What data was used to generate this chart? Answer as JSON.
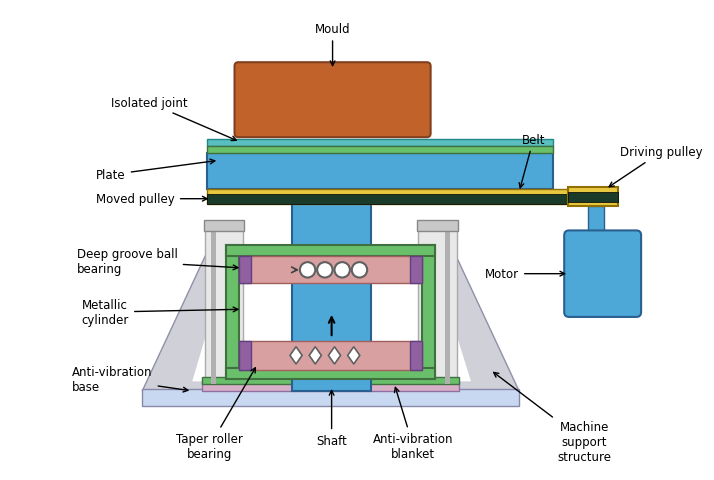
{
  "bg_color": "#ffffff",
  "colors": {
    "mould": "#c0622a",
    "plate_green": "#6abf6a",
    "plate_cyan": "#5bbfbf",
    "plate_blue": "#4da8d8",
    "pulley_yellow": "#e8c840",
    "belt_dark": "#1a3a2a",
    "shaft_blue": "#4da8d8",
    "green_frame": "#6abf6a",
    "pink_bearing": "#d8a0a0",
    "purple_spacer": "#9060a0",
    "support_gray": "#c8c8c8",
    "support_white": "#e8e8e8",
    "trap_gray": "#d0d0d8",
    "base_blue": "#c8d8f0",
    "antivib_pink": "#d8b0c8",
    "motor_blue": "#4da8d8"
  },
  "labels": {
    "mould": "Mould",
    "isolated_joint": "Isolated joint",
    "plate": "Plate",
    "moved_pulley": "Moved pulley",
    "deep_groove": "Deep groove ball\nbearing",
    "metallic_cylinder": "Metallic\ncylinder",
    "anti_vib_base": "Anti-vibration\nbase",
    "taper_roller": "Taper roller\nbearing",
    "shaft": "Shaft",
    "anti_vib_blanket": "Anti-vibration\nblanket",
    "machine_support": "Machine\nsupport\nstructure",
    "belt": "Belt",
    "driving_pulley": "Driving pulley",
    "motor": "Motor"
  }
}
